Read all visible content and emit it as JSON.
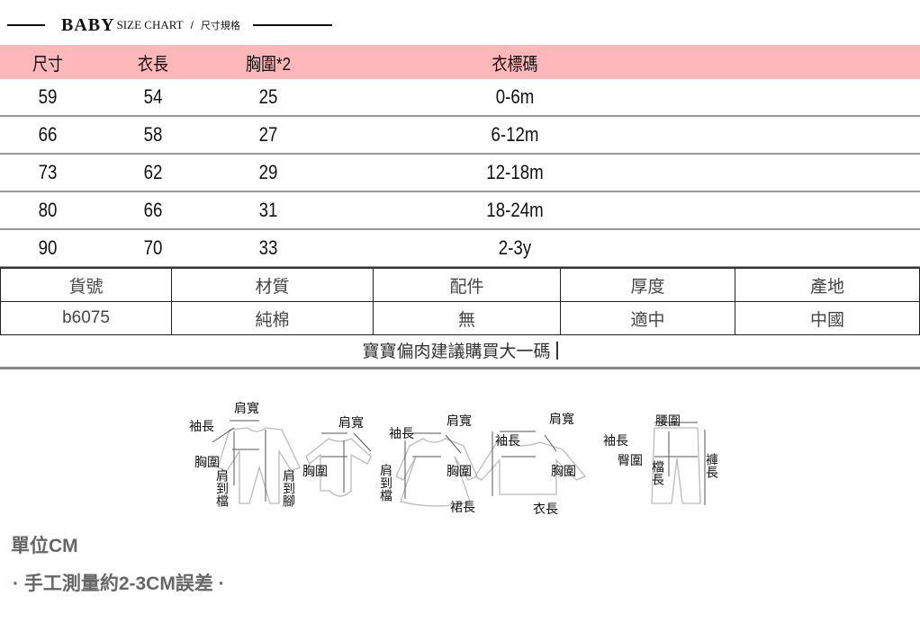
{
  "title": {
    "brand": "BABY",
    "subtitle": "SIZE CHART",
    "separator": "/",
    "chinese": "尺寸規格"
  },
  "size_table": {
    "headers": [
      "尺寸",
      "衣長",
      "胸圍*2",
      "衣標碼"
    ],
    "rows": [
      [
        "59",
        "54",
        "25",
        "0-6m"
      ],
      [
        "66",
        "58",
        "27",
        "6-12m"
      ],
      [
        "73",
        "62",
        "29",
        "12-18m"
      ],
      [
        "80",
        "66",
        "31",
        "18-24m"
      ],
      [
        "90",
        "70",
        "33",
        "2-3y"
      ]
    ],
    "header_color": "#ffb8ba"
  },
  "info_table": {
    "headers": [
      "貨號",
      "材質",
      "配件",
      "厚度",
      "產地"
    ],
    "values": [
      "b6075",
      "純棉",
      "無",
      "適中",
      "中國"
    ]
  },
  "note": "寶寶偏肉建議購買大一碼",
  "diagram_labels": {
    "romper": {
      "shoulder": "肩寬",
      "sleeve": "袖長",
      "chest": "胸圍",
      "crotch": "肩到檔",
      "foot": "肩到腳"
    },
    "bodysuit": {
      "shoulder": "肩寬",
      "sleeve": "袖長",
      "chest": "胸圍",
      "crotch": "肩到檔"
    },
    "dress": {
      "shoulder": "肩寬",
      "sleeve": "袖長",
      "chest": "胸圍",
      "length": "裙長"
    },
    "top": {
      "shoulder": "肩寬",
      "sleeve": "袖長",
      "chest": "胸圍",
      "length": "衣長"
    },
    "pants": {
      "waist": "腰圍",
      "hip": "臀圍",
      "rise": "檔長",
      "length": "褲長"
    }
  },
  "unit": "單位CM",
  "error_note": "· 手工測量約2-3CM誤差 ·"
}
